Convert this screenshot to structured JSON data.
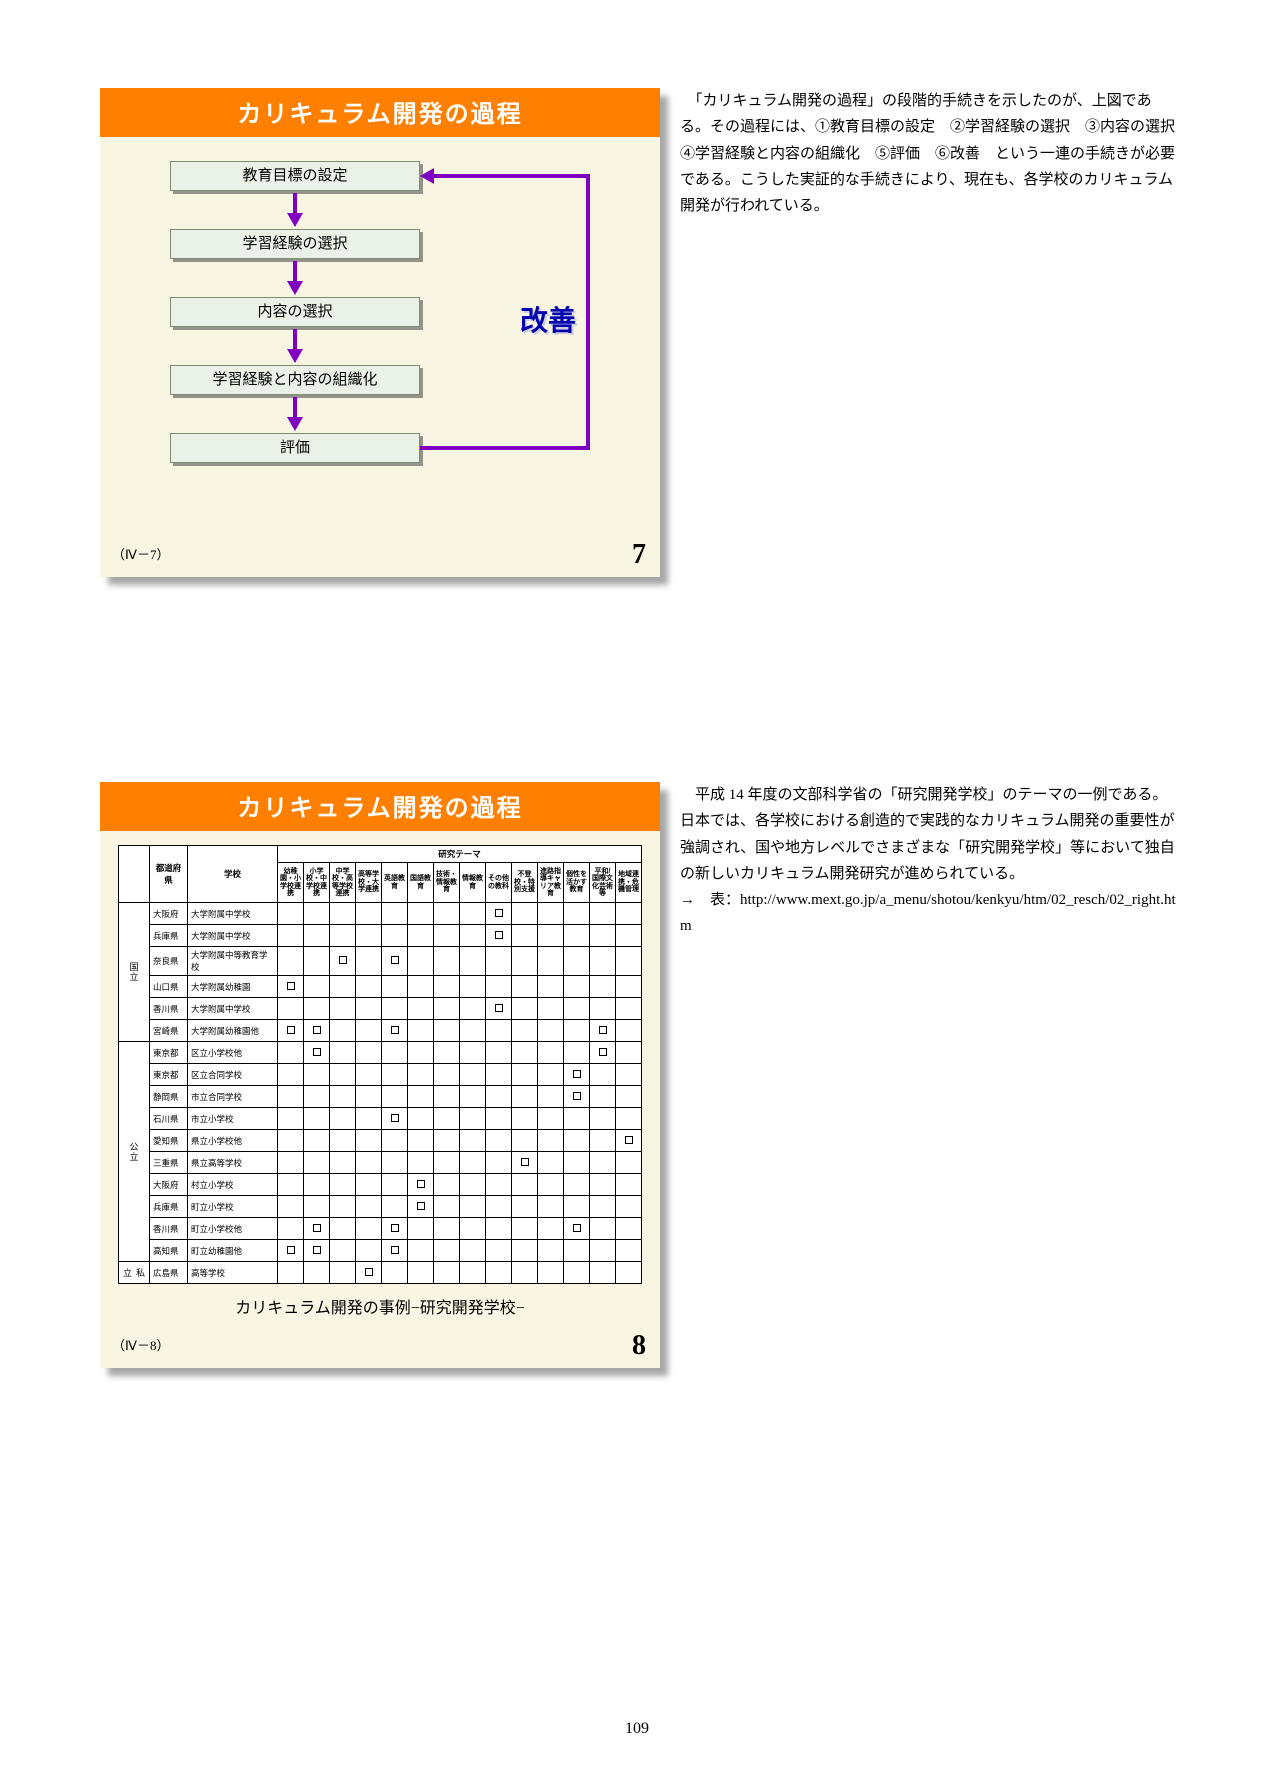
{
  "page_number": "109",
  "card1": {
    "title": "カリキュラム開発の過程",
    "steps": [
      "教育目標の設定",
      "学習経験の選択",
      "内容の選択",
      "学習経験と内容の組織化",
      "評価"
    ],
    "improve_label": "改善",
    "ref": "（Ⅳ－7）",
    "page": "7",
    "colors": {
      "titlebar": "#ff8000",
      "card_bg": "#f9f5e3",
      "step_bg": "#eaf2e8",
      "step_border": "#7a8c76",
      "arrow": "#8000c0",
      "improve_text": "#0000b0"
    }
  },
  "text1": "　「カリキュラム開発の過程」の段階的手続きを示したのが、上図である。その過程には、①教育目標の設定　②学習経験の選択　③内容の選択　④学習経験と内容の組織化　⑤評価　⑥改善　という一連の手続きが必要である。こうした実証的な手続きにより、現在も、各学校のカリキュラム開発が行われている。",
  "card2": {
    "title": "カリキュラム開発の過程",
    "subtitle": "カリキュラム開発の事例−研究開発学校−",
    "ref": "（Ⅳ－8）",
    "page": "8",
    "theme_header": "研究テーマ",
    "head_left": [
      "",
      "都道府県",
      "学校"
    ],
    "head_cols": [
      "幼稚園・小学校連携",
      "小学校・中学校連携",
      "中学校・高等学校連携",
      "高等学校・大学連携",
      "英語教育",
      "国語教育",
      "技術・情報教育",
      "情報教育",
      "その他の教科",
      "不登校・特別支援",
      "進路指導キャリア教育",
      "個性を活かす教育",
      "平和/国際文化芸術等",
      "地域連携・危機管理"
    ],
    "groups": [
      {
        "label": "国立",
        "rows": [
          {
            "pref": "大阪府",
            "school": "大学附属中学校",
            "m": [
              0,
              0,
              0,
              0,
              0,
              0,
              0,
              0,
              1,
              0,
              0,
              0,
              0,
              0
            ]
          },
          {
            "pref": "兵庫県",
            "school": "大学附属中学校",
            "m": [
              0,
              0,
              0,
              0,
              0,
              0,
              0,
              0,
              1,
              0,
              0,
              0,
              0,
              0
            ]
          },
          {
            "pref": "奈良県",
            "school": "大学附属中等教育学校",
            "m": [
              0,
              0,
              1,
              0,
              1,
              0,
              0,
              0,
              0,
              0,
              0,
              0,
              0,
              0
            ]
          },
          {
            "pref": "山口県",
            "school": "大学附属幼稚園",
            "m": [
              1,
              0,
              0,
              0,
              0,
              0,
              0,
              0,
              0,
              0,
              0,
              0,
              0,
              0
            ]
          },
          {
            "pref": "香川県",
            "school": "大学附属中学校",
            "m": [
              0,
              0,
              0,
              0,
              0,
              0,
              0,
              0,
              1,
              0,
              0,
              0,
              0,
              0
            ]
          },
          {
            "pref": "宮崎県",
            "school": "大学附属幼稚園他",
            "m": [
              1,
              1,
              0,
              0,
              1,
              0,
              0,
              0,
              0,
              0,
              0,
              0,
              1,
              0
            ]
          }
        ]
      },
      {
        "label": "公立",
        "rows": [
          {
            "pref": "東京都",
            "school": "区立小学校他",
            "m": [
              0,
              1,
              0,
              0,
              0,
              0,
              0,
              0,
              0,
              0,
              0,
              0,
              1,
              0
            ]
          },
          {
            "pref": "東京都",
            "school": "区立合同学校",
            "m": [
              0,
              0,
              0,
              0,
              0,
              0,
              0,
              0,
              0,
              0,
              0,
              1,
              0,
              0
            ]
          },
          {
            "pref": "静岡県",
            "school": "市立合同学校",
            "m": [
              0,
              0,
              0,
              0,
              0,
              0,
              0,
              0,
              0,
              0,
              0,
              1,
              0,
              0
            ]
          },
          {
            "pref": "石川県",
            "school": "市立小学校",
            "m": [
              0,
              0,
              0,
              0,
              1,
              0,
              0,
              0,
              0,
              0,
              0,
              0,
              0,
              0
            ]
          },
          {
            "pref": "愛知県",
            "school": "県立小学校他",
            "m": [
              0,
              0,
              0,
              0,
              0,
              0,
              0,
              0,
              0,
              0,
              0,
              0,
              0,
              1
            ]
          },
          {
            "pref": "三重県",
            "school": "県立高等学校",
            "m": [
              0,
              0,
              0,
              0,
              0,
              0,
              0,
              0,
              0,
              1,
              0,
              0,
              0,
              0
            ]
          },
          {
            "pref": "大阪府",
            "school": "村立小学校",
            "m": [
              0,
              0,
              0,
              0,
              0,
              1,
              0,
              0,
              0,
              0,
              0,
              0,
              0,
              0
            ]
          },
          {
            "pref": "兵庫県",
            "school": "町立小学校",
            "m": [
              0,
              0,
              0,
              0,
              0,
              1,
              0,
              0,
              0,
              0,
              0,
              0,
              0,
              0
            ]
          },
          {
            "pref": "香川県",
            "school": "町立小学校他",
            "m": [
              0,
              1,
              0,
              0,
              1,
              0,
              0,
              0,
              0,
              0,
              0,
              1,
              0,
              0
            ]
          },
          {
            "pref": "高知県",
            "school": "町立幼稚園他",
            "m": [
              1,
              1,
              0,
              0,
              1,
              0,
              0,
              0,
              0,
              0,
              0,
              0,
              0,
              0
            ]
          }
        ]
      },
      {
        "label": "私立",
        "rows": [
          {
            "pref": "広島県",
            "school": "高等学校",
            "m": [
              0,
              0,
              0,
              1,
              0,
              0,
              0,
              0,
              0,
              0,
              0,
              0,
              0,
              0
            ]
          }
        ]
      }
    ]
  },
  "text2_main": "　平成 14 年度の文部科学省の「研究開発学校」のテーマの一例である。日本では、各学校における創造的で実践的なカリキュラム開発の重要性が強調され、国や地方レベルでさまざまな「研究開発学校」等において独自の新しいカリキュラム開発研究が進められている。",
  "text2_link_prefix": "→　表：",
  "text2_link": "http://www.mext.go.jp/a_menu/shotou/kenkyu/htm/02_resch/02_right.htm"
}
